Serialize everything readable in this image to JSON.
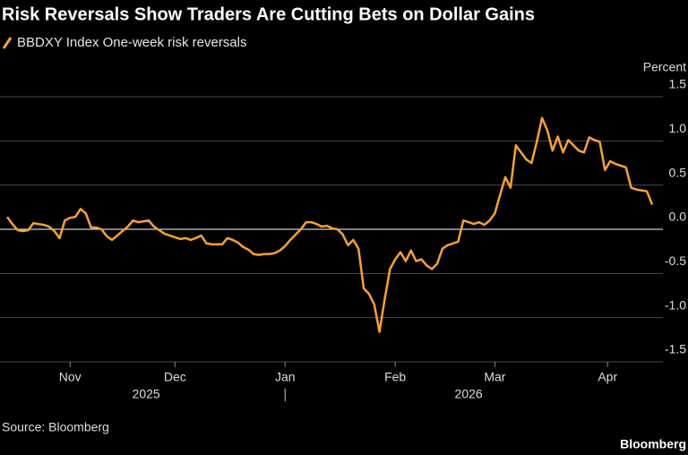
{
  "chart_data": {
    "type": "line",
    "title": "Risk Reversals Show Traders Are Cutting Bets on Dollar Gains",
    "axis_unit": "Percent",
    "source": "Source: Bloomberg",
    "brand": "Bloomberg",
    "series": [
      {
        "name": "BBDXY Index One-week risk reversals",
        "color": "#f5a233",
        "values": [
          0.14,
          0.06,
          -0.01,
          -0.02,
          -0.01,
          0.07,
          0.06,
          0.05,
          0.03,
          -0.02,
          -0.1,
          0.1,
          0.13,
          0.14,
          0.23,
          0.18,
          0.02,
          0.02,
          0.0,
          -0.08,
          -0.12,
          -0.07,
          -0.02,
          0.03,
          0.1,
          0.08,
          0.09,
          0.1,
          0.03,
          -0.01,
          -0.05,
          -0.07,
          -0.09,
          -0.11,
          -0.1,
          -0.12,
          -0.1,
          -0.07,
          -0.16,
          -0.17,
          -0.17,
          -0.17,
          -0.1,
          -0.12,
          -0.15,
          -0.2,
          -0.23,
          -0.28,
          -0.29,
          -0.28,
          -0.28,
          -0.27,
          -0.24,
          -0.19,
          -0.12,
          -0.06,
          0.0,
          0.08,
          0.08,
          0.06,
          0.03,
          0.04,
          0.01,
          0.0,
          -0.06,
          -0.18,
          -0.12,
          -0.22,
          -0.67,
          -0.73,
          -0.85,
          -1.16,
          -0.79,
          -0.45,
          -0.34,
          -0.26,
          -0.36,
          -0.24,
          -0.36,
          -0.34,
          -0.41,
          -0.45,
          -0.39,
          -0.22,
          -0.18,
          -0.16,
          -0.14,
          0.1,
          0.08,
          0.06,
          0.08,
          0.05,
          0.1,
          0.18,
          0.39,
          0.59,
          0.47,
          0.95,
          0.87,
          0.79,
          0.75,
          0.99,
          1.26,
          1.12,
          0.89,
          1.05,
          0.87,
          1.01,
          0.95,
          0.89,
          0.87,
          1.04,
          1.01,
          0.99,
          0.67,
          0.77,
          0.74,
          0.72,
          0.7,
          0.47,
          0.45,
          0.44,
          0.43,
          0.28
        ]
      }
    ],
    "xlim": [
      0,
      123
    ],
    "xticks": [
      {
        "value": 12,
        "label": "Nov"
      },
      {
        "value": 32,
        "label": "Dec"
      },
      {
        "value": 53,
        "label": "Jan"
      },
      {
        "value": 74,
        "label": "Feb"
      },
      {
        "value": 93,
        "label": "Mar"
      },
      {
        "value": 114.5,
        "label": "Apr"
      }
    ],
    "year_labels": [
      {
        "value": 26.5,
        "label": "2025"
      },
      {
        "value": 88,
        "label": "2026"
      }
    ],
    "ylim": [
      -1.5,
      1.5
    ],
    "yticks": [
      1.5,
      {
        "value": 1,
        "label": "1.0"
      },
      0.5,
      {
        "value": 0,
        "label": "0.0"
      },
      -0.5,
      {
        "value": -1,
        "label": "-1.0"
      },
      -1.5
    ],
    "grid": true
  }
}
